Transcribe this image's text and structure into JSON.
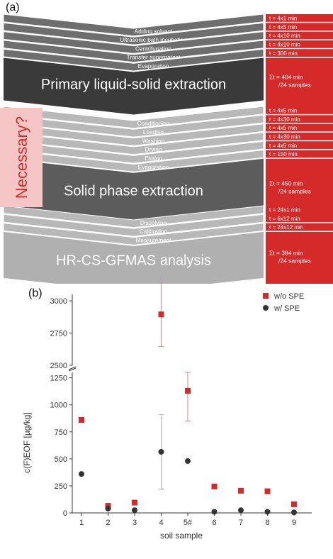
{
  "panel_a": {
    "label": "(a)",
    "side_label": "Necessary?",
    "sections": [
      {
        "steps": [
          {
            "name": "Adding solvent",
            "time": "t = 4x1 min"
          },
          {
            "name": "Ultrasonic bath incubation",
            "time": "t = 4x5 min"
          },
          {
            "name": "Centrifugation",
            "time": "t = 4x10 min"
          },
          {
            "name": "Transfer supernatant",
            "time": "t = 4x10 min"
          },
          {
            "name": "Evaporation",
            "time": "t = 300 min"
          }
        ],
        "title": "Primary liquid-solid extraction",
        "total": "Σt = 404 min\n/24 samples"
      },
      {
        "steps": [
          {
            "name": "Conditioning",
            "time": "t = 4x5 min"
          },
          {
            "name": "Loading",
            "time": "t = 4x30 min"
          },
          {
            "name": "Washing",
            "time": "t = 4x5 min"
          },
          {
            "name": "Drying",
            "time": "t = 4x30 min"
          },
          {
            "name": "Elution",
            "time": "t = 4x5 min"
          },
          {
            "name": "Evaporation",
            "time": "t = 150 min"
          }
        ],
        "title": "Solid phase extraction",
        "total": "Σt = 450 min\n/24 samples"
      },
      {
        "steps": [
          {
            "name": "Dissolving",
            "time": "t = 24x1 min"
          },
          {
            "name": "Calibration",
            "time": "t = 6x12 min"
          },
          {
            "name": "Measurement",
            "time": "t = 24x12 min"
          }
        ],
        "title": "HR-CS-GFMAS analysis",
        "total": "Σt = 384 min\n/24 samples"
      }
    ],
    "colors": {
      "red": "#d42a2a",
      "dark_header": "#3d3d3d",
      "step_dark": "#6e6e6e",
      "step_light": "#b8b8b8",
      "pink": "#f6c6c6"
    }
  },
  "chart_data": {
    "type": "scatter",
    "panel_label": "(b)",
    "xlabel": "soil sample",
    "ylabel": "c(F)EOF [µg/kg]",
    "categories": [
      "1",
      "2",
      "3",
      "4",
      "5#",
      "6",
      "7",
      "8",
      "9"
    ],
    "y_axis_break": [
      1300,
      2500
    ],
    "ylim_lower": [
      0,
      1300
    ],
    "ylim_upper": [
      2500,
      3050
    ],
    "yticks_lower": [
      0,
      250,
      500,
      750,
      1000,
      1250
    ],
    "yticks_upper": [
      2500,
      2750,
      3000
    ],
    "legend_position": "top-right",
    "series": [
      {
        "name": "w/o SPE",
        "color": "#d42a2a",
        "marker": "square",
        "values": [
          860,
          65,
          95,
          2895,
          1130,
          245,
          205,
          200,
          80
        ],
        "errors": [
          0,
          0,
          0,
          250,
          280,
          20,
          0,
          0,
          0
        ]
      },
      {
        "name": "w/ SPE",
        "color": "#333333",
        "marker": "circle",
        "values": [
          360,
          40,
          25,
          565,
          480,
          10,
          25,
          10,
          5
        ],
        "errors": [
          0,
          0,
          0,
          345,
          0,
          0,
          0,
          0,
          0
        ]
      }
    ]
  }
}
